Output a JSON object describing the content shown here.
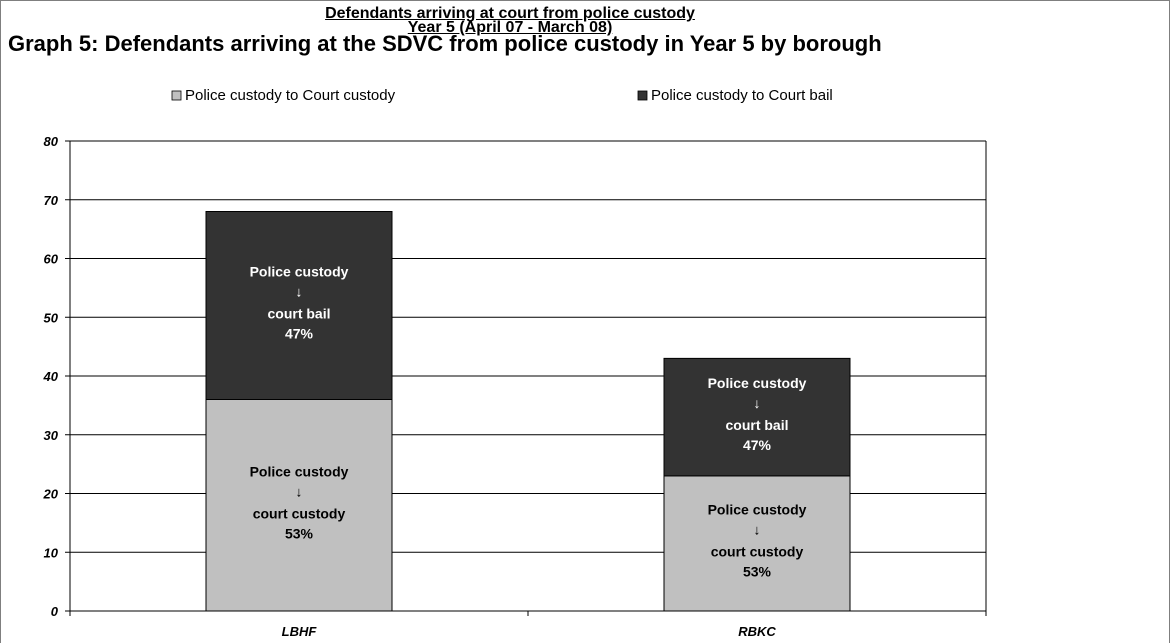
{
  "header": {
    "title": "Defendants arriving at court from police custody",
    "subtitle": "Year 5 (April 07 - March 08)"
  },
  "graph_title": "Graph 5: Defendants arriving at the SDVC from police custody in Year 5 by borough",
  "colors": {
    "custody": "#c0c0c0",
    "bail": "#333333",
    "grid": "#000000",
    "label_light": "#ffffff",
    "label_dark": "#000000"
  },
  "chart_data": {
    "type": "bar",
    "stacked": true,
    "categories": [
      "LBHF",
      "RBKC"
    ],
    "series": [
      {
        "name": "Police custody to Court custody",
        "values": [
          36,
          23
        ],
        "color": "#c0c0c0"
      },
      {
        "name": "Police custody to Court bail",
        "values": [
          32,
          20
        ],
        "color": "#333333"
      }
    ],
    "segment_labels": [
      [
        {
          "line1": "Police custody",
          "arrow": "↓",
          "line2": "court custody",
          "pct": "53%"
        },
        {
          "line1": "Police custody",
          "arrow": "↓",
          "line2": "court bail",
          "pct": "47%"
        }
      ],
      [
        {
          "line1": "Police custody",
          "arrow": "↓",
          "line2": "court custody",
          "pct": "53%"
        },
        {
          "line1": "Police custody",
          "arrow": "↓",
          "line2": "court bail",
          "pct": "47%"
        }
      ]
    ],
    "ylim": [
      0,
      80
    ],
    "yticks": [
      "0",
      "10",
      "20",
      "30",
      "40",
      "50",
      "60",
      "70",
      "80"
    ],
    "grid": true,
    "legend_position": "top"
  }
}
